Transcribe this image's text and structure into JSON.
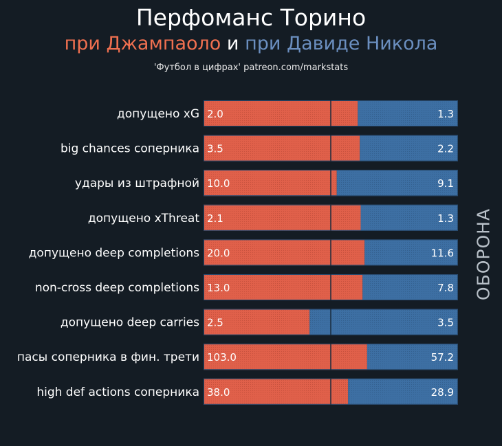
{
  "header": {
    "title": "Перфоманс Торино",
    "subtitle_part1": "при Джампаоло",
    "subtitle_and": "и",
    "subtitle_part2": "при Давиде Никола",
    "credit": "'Футбол в цифрах' patreon.com/markstats"
  },
  "side_label": "ОБОРОНА",
  "colors": {
    "background": "#141c24",
    "series1": "#e0604a",
    "series2": "#3d6fa3",
    "series1_title": "#f07050",
    "series2_title": "#6b8fc0"
  },
  "chart_data": {
    "type": "bar",
    "orientation": "horizontal",
    "stacked_share": true,
    "title": "Перфоманс Торино",
    "categories": [
      "допущено xG",
      "big chances соперника",
      "удары из штрафной",
      "допущено xThreat",
      "допущено deep completions",
      "non-cross deep completions",
      "допущено deep carries",
      "пасы соперника в фин. трети",
      "high def actions соперника"
    ],
    "series": [
      {
        "name": "при Джампаоло",
        "values": [
          2.0,
          3.5,
          10.0,
          2.1,
          20.0,
          13.0,
          2.5,
          103.0,
          38.0
        ],
        "labels": [
          "2.0",
          "3.5",
          "10.0",
          "2.1",
          "20.0",
          "13.0",
          "2.5",
          "103.0",
          "38.0"
        ]
      },
      {
        "name": "при Давиде Никола",
        "values": [
          1.3,
          2.2,
          9.1,
          1.3,
          11.6,
          7.8,
          3.5,
          57.2,
          28.9
        ],
        "labels": [
          "1.3",
          "2.2",
          "9.1",
          "1.3",
          "11.6",
          "7.8",
          "3.5",
          "57.2",
          "28.9"
        ]
      }
    ]
  }
}
